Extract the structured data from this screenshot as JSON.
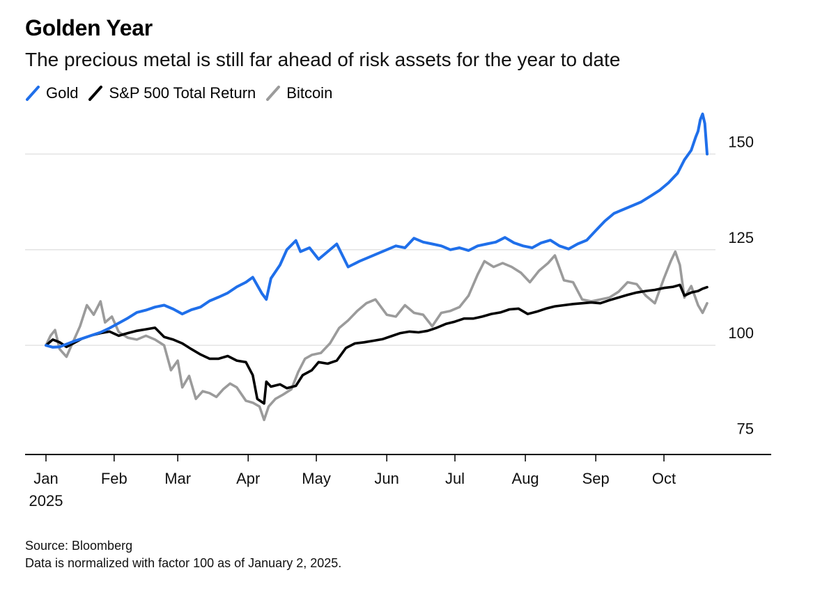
{
  "header": {
    "title": "Golden Year",
    "subtitle": "The precious metal is still far ahead of risk assets for the year to date"
  },
  "footer": {
    "source": "Source: Bloomberg",
    "note": "Data is normalized with factor 100 as of January 2, 2025."
  },
  "chart_data": {
    "type": "line",
    "title": "Golden Year",
    "subtitle": "The precious metal is still far ahead of risk assets for the year to date",
    "xlabel": "",
    "ylabel": "",
    "x_ticks": [
      "Jan",
      "Feb",
      "Mar",
      "Apr",
      "May",
      "Jun",
      "Jul",
      "Aug",
      "Sep",
      "Oct"
    ],
    "x_tick_year": "2025",
    "y_ticks": [
      75,
      100,
      125,
      150
    ],
    "ylim": [
      72,
      163
    ],
    "xlim": [
      "2025-01-02",
      "2025-10-20"
    ],
    "grid": true,
    "legend_position": "top-left",
    "series": [
      {
        "name": "Gold",
        "color": "#1f6fea",
        "points": [
          [
            "2025-01-02",
            100
          ],
          [
            "2025-01-05",
            99.5
          ],
          [
            "2025-01-08",
            99.6
          ],
          [
            "2025-01-11",
            100.3
          ],
          [
            "2025-01-14",
            101
          ],
          [
            "2025-01-18",
            101.8
          ],
          [
            "2025-01-22",
            102.6
          ],
          [
            "2025-01-26",
            103.4
          ],
          [
            "2025-01-30",
            104.5
          ],
          [
            "2025-02-03",
            105.8
          ],
          [
            "2025-02-07",
            107.1
          ],
          [
            "2025-02-11",
            108.6
          ],
          [
            "2025-02-15",
            109.2
          ],
          [
            "2025-02-19",
            110
          ],
          [
            "2025-02-23",
            110.5
          ],
          [
            "2025-02-27",
            109.5
          ],
          [
            "2025-03-03",
            108.2
          ],
          [
            "2025-03-07",
            109.3
          ],
          [
            "2025-03-11",
            110
          ],
          [
            "2025-03-15",
            111.6
          ],
          [
            "2025-03-19",
            112.6
          ],
          [
            "2025-03-23",
            113.7
          ],
          [
            "2025-03-27",
            115.3
          ],
          [
            "2025-03-31",
            116.5
          ],
          [
            "2025-04-03",
            117.8
          ],
          [
            "2025-04-07",
            113.6
          ],
          [
            "2025-04-09",
            112
          ],
          [
            "2025-04-11",
            117.5
          ],
          [
            "2025-04-15",
            121
          ],
          [
            "2025-04-18",
            125
          ],
          [
            "2025-04-22",
            127.4
          ],
          [
            "2025-04-24",
            124.5
          ],
          [
            "2025-04-28",
            125.5
          ],
          [
            "2025-05-02",
            122.5
          ],
          [
            "2025-05-06",
            124.5
          ],
          [
            "2025-05-10",
            126.5
          ],
          [
            "2025-05-15",
            120.5
          ],
          [
            "2025-05-20",
            122
          ],
          [
            "2025-05-24",
            123
          ],
          [
            "2025-05-28",
            124
          ],
          [
            "2025-06-01",
            125
          ],
          [
            "2025-06-05",
            126
          ],
          [
            "2025-06-09",
            125.5
          ],
          [
            "2025-06-13",
            128
          ],
          [
            "2025-06-17",
            127
          ],
          [
            "2025-06-21",
            126.5
          ],
          [
            "2025-06-25",
            126
          ],
          [
            "2025-06-29",
            125
          ],
          [
            "2025-07-03",
            125.5
          ],
          [
            "2025-07-07",
            124.8
          ],
          [
            "2025-07-11",
            126
          ],
          [
            "2025-07-15",
            126.5
          ],
          [
            "2025-07-19",
            127
          ],
          [
            "2025-07-23",
            128.2
          ],
          [
            "2025-07-27",
            126.8
          ],
          [
            "2025-07-31",
            126
          ],
          [
            "2025-08-04",
            125.5
          ],
          [
            "2025-08-08",
            126.8
          ],
          [
            "2025-08-12",
            127.5
          ],
          [
            "2025-08-16",
            126
          ],
          [
            "2025-08-20",
            125.2
          ],
          [
            "2025-08-24",
            126.5
          ],
          [
            "2025-08-28",
            127.5
          ],
          [
            "2025-09-01",
            130
          ],
          [
            "2025-09-05",
            132.5
          ],
          [
            "2025-09-09",
            134.5
          ],
          [
            "2025-09-13",
            135.5
          ],
          [
            "2025-09-17",
            136.5
          ],
          [
            "2025-09-21",
            137.5
          ],
          [
            "2025-09-25",
            139
          ],
          [
            "2025-09-29",
            140.5
          ],
          [
            "2025-10-03",
            142.5
          ],
          [
            "2025-10-07",
            145
          ],
          [
            "2025-10-10",
            148.5
          ],
          [
            "2025-10-13",
            151
          ],
          [
            "2025-10-15",
            154.5
          ],
          [
            "2025-10-16",
            156
          ],
          [
            "2025-10-17",
            159
          ],
          [
            "2025-10-18",
            160.5
          ],
          [
            "2025-10-19",
            158
          ],
          [
            "2025-10-20",
            150
          ]
        ]
      },
      {
        "name": "S&P 500 Total Return",
        "color": "#000000",
        "points": [
          [
            "2025-01-02",
            100
          ],
          [
            "2025-01-05",
            101.5
          ],
          [
            "2025-01-08",
            100.8
          ],
          [
            "2025-01-11",
            99.6
          ],
          [
            "2025-01-14",
            100.5
          ],
          [
            "2025-01-18",
            101.8
          ],
          [
            "2025-01-22",
            102.6
          ],
          [
            "2025-01-26",
            103.2
          ],
          [
            "2025-01-30",
            103.6
          ],
          [
            "2025-02-03",
            102.5
          ],
          [
            "2025-02-07",
            103.2
          ],
          [
            "2025-02-11",
            103.8
          ],
          [
            "2025-02-15",
            104.2
          ],
          [
            "2025-02-19",
            104.6
          ],
          [
            "2025-02-23",
            102.2
          ],
          [
            "2025-02-27",
            101.5
          ],
          [
            "2025-03-03",
            100.5
          ],
          [
            "2025-03-07",
            99
          ],
          [
            "2025-03-11",
            97.6
          ],
          [
            "2025-03-15",
            96.5
          ],
          [
            "2025-03-19",
            96.5
          ],
          [
            "2025-03-23",
            97.2
          ],
          [
            "2025-03-27",
            96
          ],
          [
            "2025-03-31",
            95.6
          ],
          [
            "2025-04-03",
            92.2
          ],
          [
            "2025-04-05",
            86
          ],
          [
            "2025-04-08",
            84.8
          ],
          [
            "2025-04-09",
            90.5
          ],
          [
            "2025-04-11",
            89.2
          ],
          [
            "2025-04-15",
            89.8
          ],
          [
            "2025-04-18",
            88.8
          ],
          [
            "2025-04-22",
            89.4
          ],
          [
            "2025-04-25",
            92.2
          ],
          [
            "2025-04-29",
            93.5
          ],
          [
            "2025-05-02",
            95.6
          ],
          [
            "2025-05-06",
            95.2
          ],
          [
            "2025-05-10",
            96
          ],
          [
            "2025-05-14",
            99.3
          ],
          [
            "2025-05-18",
            100.5
          ],
          [
            "2025-05-22",
            100.8
          ],
          [
            "2025-05-26",
            101.2
          ],
          [
            "2025-05-30",
            101.6
          ],
          [
            "2025-06-03",
            102.4
          ],
          [
            "2025-06-07",
            103.2
          ],
          [
            "2025-06-11",
            103.6
          ],
          [
            "2025-06-15",
            103.4
          ],
          [
            "2025-06-19",
            103.8
          ],
          [
            "2025-06-23",
            104.6
          ],
          [
            "2025-06-27",
            105.6
          ],
          [
            "2025-07-01",
            106.2
          ],
          [
            "2025-07-05",
            107
          ],
          [
            "2025-07-09",
            107
          ],
          [
            "2025-07-13",
            107.5
          ],
          [
            "2025-07-17",
            108.2
          ],
          [
            "2025-07-21",
            108.6
          ],
          [
            "2025-07-25",
            109.4
          ],
          [
            "2025-07-29",
            109.6
          ],
          [
            "2025-08-02",
            108.2
          ],
          [
            "2025-08-06",
            108.8
          ],
          [
            "2025-08-10",
            109.6
          ],
          [
            "2025-08-14",
            110.2
          ],
          [
            "2025-08-18",
            110.5
          ],
          [
            "2025-08-22",
            110.8
          ],
          [
            "2025-08-26",
            111
          ],
          [
            "2025-08-30",
            111.2
          ],
          [
            "2025-09-03",
            111
          ],
          [
            "2025-09-07",
            111.8
          ],
          [
            "2025-09-11",
            112.5
          ],
          [
            "2025-09-15",
            113.2
          ],
          [
            "2025-09-19",
            113.8
          ],
          [
            "2025-09-23",
            114.2
          ],
          [
            "2025-09-27",
            114.5
          ],
          [
            "2025-10-01",
            115
          ],
          [
            "2025-10-05",
            115.3
          ],
          [
            "2025-10-08",
            115.8
          ],
          [
            "2025-10-10",
            113
          ],
          [
            "2025-10-13",
            113.8
          ],
          [
            "2025-10-16",
            114.2
          ],
          [
            "2025-10-18",
            114.8
          ],
          [
            "2025-10-20",
            115.2
          ]
        ]
      },
      {
        "name": "Bitcoin",
        "color": "#9b9b9b",
        "points": [
          [
            "2025-01-02",
            100
          ],
          [
            "2025-01-04",
            102.5
          ],
          [
            "2025-01-06",
            104
          ],
          [
            "2025-01-08",
            99
          ],
          [
            "2025-01-11",
            97
          ],
          [
            "2025-01-14",
            101
          ],
          [
            "2025-01-17",
            105
          ],
          [
            "2025-01-20",
            110.5
          ],
          [
            "2025-01-23",
            108
          ],
          [
            "2025-01-26",
            111.5
          ],
          [
            "2025-01-28",
            106
          ],
          [
            "2025-01-31",
            107.5
          ],
          [
            "2025-02-03",
            103.5
          ],
          [
            "2025-02-07",
            102
          ],
          [
            "2025-02-11",
            101.5
          ],
          [
            "2025-02-15",
            102.5
          ],
          [
            "2025-02-19",
            101.5
          ],
          [
            "2025-02-23",
            100
          ],
          [
            "2025-02-26",
            93.5
          ],
          [
            "2025-03-01",
            96
          ],
          [
            "2025-03-03",
            89
          ],
          [
            "2025-03-06",
            92
          ],
          [
            "2025-03-09",
            86
          ],
          [
            "2025-03-12",
            88
          ],
          [
            "2025-03-15",
            87.5
          ],
          [
            "2025-03-18",
            86.5
          ],
          [
            "2025-03-21",
            88.5
          ],
          [
            "2025-03-24",
            90
          ],
          [
            "2025-03-27",
            89
          ],
          [
            "2025-03-31",
            85.5
          ],
          [
            "2025-04-03",
            85
          ],
          [
            "2025-04-06",
            84
          ],
          [
            "2025-04-08",
            80.5
          ],
          [
            "2025-04-10",
            84
          ],
          [
            "2025-04-13",
            86
          ],
          [
            "2025-04-16",
            87
          ],
          [
            "2025-04-20",
            88.5
          ],
          [
            "2025-04-23",
            93
          ],
          [
            "2025-04-26",
            96.5
          ],
          [
            "2025-04-29",
            97.5
          ],
          [
            "2025-05-03",
            98
          ],
          [
            "2025-05-07",
            100.5
          ],
          [
            "2025-05-11",
            104.5
          ],
          [
            "2025-05-15",
            106.5
          ],
          [
            "2025-05-19",
            109
          ],
          [
            "2025-05-23",
            111
          ],
          [
            "2025-05-27",
            112
          ],
          [
            "2025-06-01",
            108
          ],
          [
            "2025-06-05",
            107.5
          ],
          [
            "2025-06-09",
            110.5
          ],
          [
            "2025-06-13",
            108.5
          ],
          [
            "2025-06-17",
            108
          ],
          [
            "2025-06-21",
            105
          ],
          [
            "2025-06-25",
            108.5
          ],
          [
            "2025-06-29",
            109
          ],
          [
            "2025-07-03",
            110
          ],
          [
            "2025-07-07",
            113
          ],
          [
            "2025-07-11",
            118.5
          ],
          [
            "2025-07-14",
            122
          ],
          [
            "2025-07-18",
            120.5
          ],
          [
            "2025-07-22",
            121.5
          ],
          [
            "2025-07-26",
            120.5
          ],
          [
            "2025-07-30",
            119
          ],
          [
            "2025-08-03",
            116.5
          ],
          [
            "2025-08-07",
            119.5
          ],
          [
            "2025-08-11",
            121.5
          ],
          [
            "2025-08-14",
            123.5
          ],
          [
            "2025-08-18",
            117
          ],
          [
            "2025-08-22",
            116.5
          ],
          [
            "2025-08-26",
            112
          ],
          [
            "2025-08-30",
            111.5
          ],
          [
            "2025-09-03",
            112
          ],
          [
            "2025-09-07",
            112.5
          ],
          [
            "2025-09-11",
            114
          ],
          [
            "2025-09-15",
            116.5
          ],
          [
            "2025-09-19",
            116
          ],
          [
            "2025-09-23",
            113
          ],
          [
            "2025-09-27",
            111
          ],
          [
            "2025-10-01",
            117.5
          ],
          [
            "2025-10-04",
            122
          ],
          [
            "2025-10-06",
            124.5
          ],
          [
            "2025-10-08",
            121
          ],
          [
            "2025-10-10",
            112.5
          ],
          [
            "2025-10-13",
            115.5
          ],
          [
            "2025-10-16",
            110.5
          ],
          [
            "2025-10-18",
            108.5
          ],
          [
            "2025-10-20",
            111
          ]
        ]
      }
    ]
  }
}
